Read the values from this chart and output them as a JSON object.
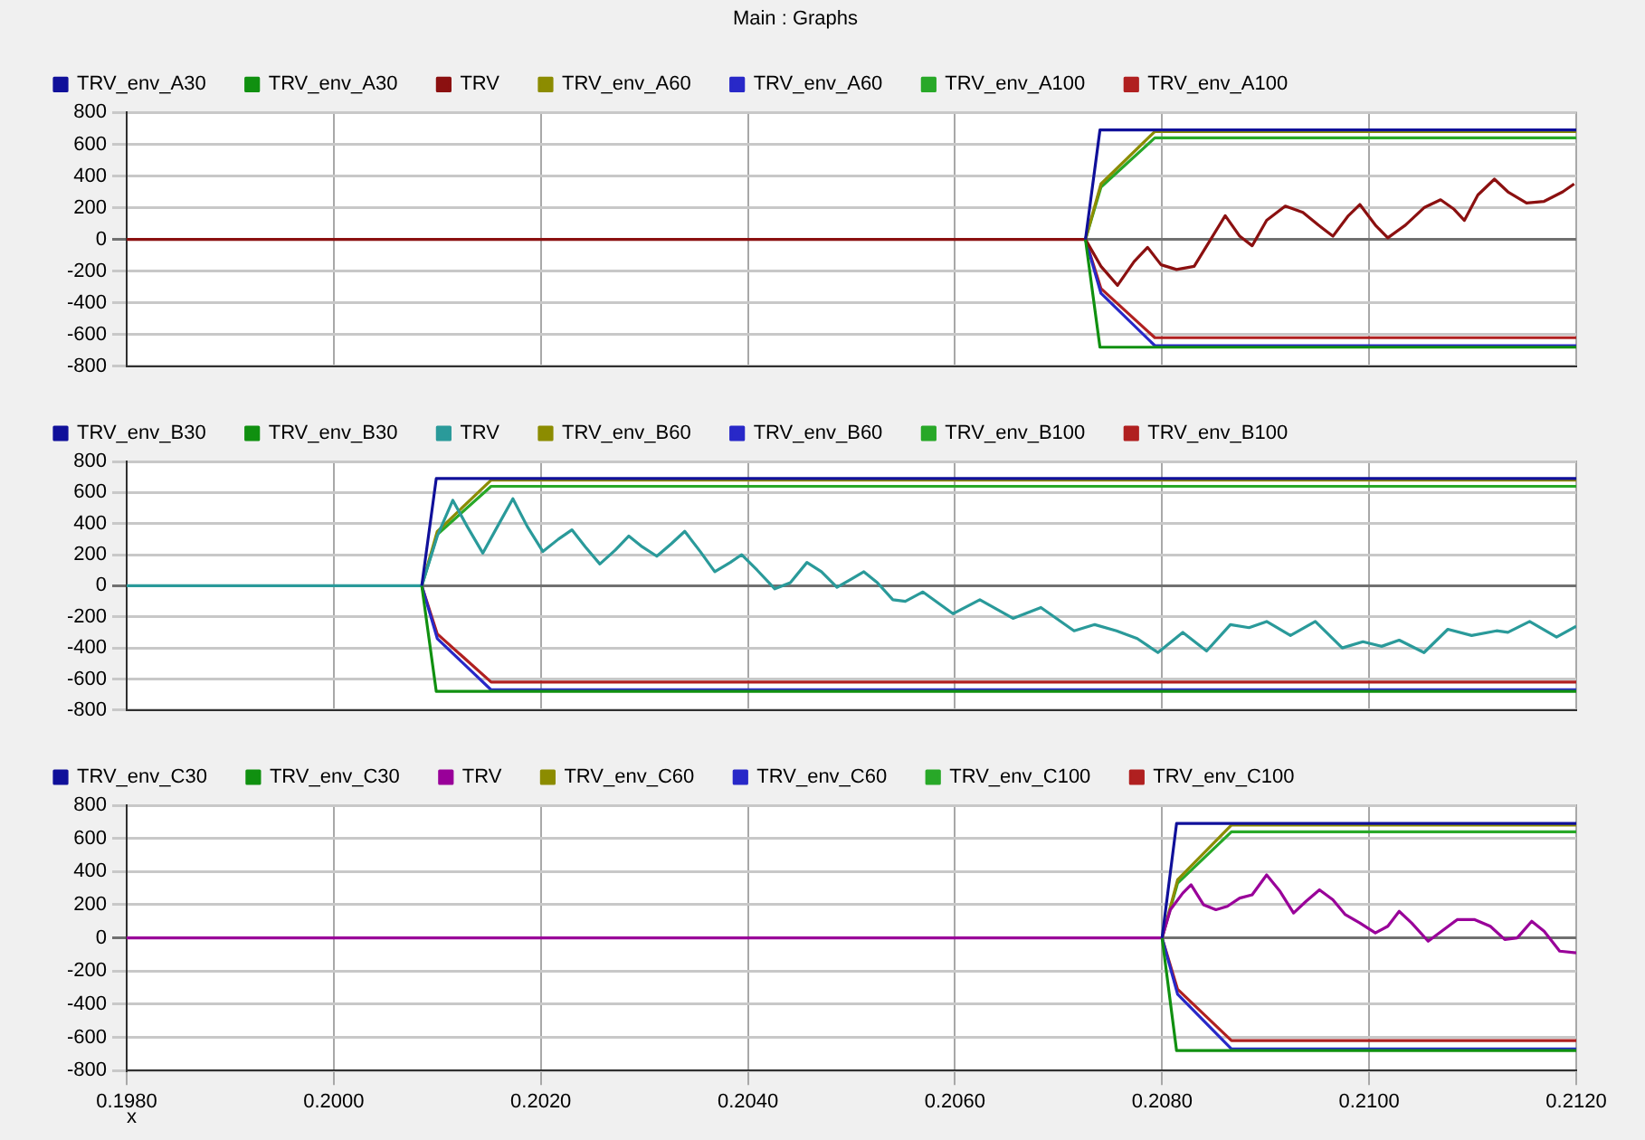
{
  "chart_data": [
    {
      "type": "line",
      "title": "Main : Graphs",
      "legend": "top",
      "grid": true,
      "tick_labels": "y",
      "xlim": [
        0.198,
        0.212
      ],
      "xticks": [
        0.198,
        0.2,
        0.202,
        0.204,
        0.206,
        0.208,
        0.21,
        0.212
      ],
      "ylim": [
        -800,
        800
      ],
      "yticks": [
        -800,
        -600,
        -400,
        -200,
        0,
        200,
        400,
        600,
        800
      ],
      "series": [
        {
          "name": "TRV_env_A30",
          "color": "#10109a",
          "x": [
            0.20726,
            0.2074,
            0.212
          ],
          "values": [
            0,
            690,
            690
          ]
        },
        {
          "name": "TRV_env_A30",
          "color": "#109010",
          "x": [
            0.20726,
            0.2074,
            0.212
          ],
          "values": [
            0,
            -680,
            -680
          ]
        },
        {
          "name": "TRV",
          "color": "#8b1010",
          "x": [
            0.198,
            0.20726,
            0.20741,
            0.20757,
            0.20773,
            0.20786,
            0.20799,
            0.20814,
            0.20831,
            0.20846,
            0.20861,
            0.20875,
            0.20887,
            0.20901,
            0.20919,
            0.20936,
            0.20951,
            0.20965,
            0.2098,
            0.20991,
            0.21006,
            0.21018,
            0.21035,
            0.21053,
            0.21069,
            0.21082,
            0.21092,
            0.21105,
            0.21121,
            0.21134,
            0.21152,
            0.21169,
            0.21187,
            0.21198
          ],
          "values": [
            0,
            0,
            -170,
            -290,
            -140,
            -50,
            -160,
            -190,
            -170,
            -10,
            150,
            20,
            -40,
            120,
            210,
            170,
            90,
            20,
            150,
            220,
            90,
            10,
            90,
            200,
            250,
            190,
            120,
            280,
            380,
            300,
            230,
            240,
            300,
            350
          ]
        },
        {
          "name": "TRV_env_A60",
          "color": "#8c8c00",
          "x": [
            0.20726,
            0.20741,
            0.20793,
            0.212
          ],
          "values": [
            0,
            350,
            680,
            680
          ]
        },
        {
          "name": "TRV_env_A60",
          "color": "#2828c8",
          "x": [
            0.20726,
            0.20741,
            0.20793,
            0.212
          ],
          "values": [
            0,
            -340,
            -670,
            -670
          ]
        },
        {
          "name": "TRV_env_A100",
          "color": "#28a828",
          "x": [
            0.20726,
            0.20741,
            0.20793,
            0.212
          ],
          "values": [
            0,
            330,
            640,
            640
          ]
        },
        {
          "name": "TRV_env_A100",
          "color": "#b02020",
          "x": [
            0.20726,
            0.20741,
            0.20793,
            0.212
          ],
          "values": [
            0,
            -310,
            -620,
            -620
          ]
        }
      ]
    },
    {
      "type": "line",
      "legend": "top",
      "grid": true,
      "tick_labels": "y",
      "xlim": [
        0.198,
        0.212
      ],
      "xticks": [
        0.198,
        0.2,
        0.202,
        0.204,
        0.206,
        0.208,
        0.21,
        0.212
      ],
      "ylim": [
        -800,
        800
      ],
      "yticks": [
        -800,
        -600,
        -400,
        -200,
        0,
        200,
        400,
        600,
        800
      ],
      "series": [
        {
          "name": "TRV_env_B30",
          "color": "#10109a",
          "x": [
            0.20085,
            0.20099,
            0.212
          ],
          "values": [
            0,
            690,
            690
          ]
        },
        {
          "name": "TRV_env_B30",
          "color": "#109010",
          "x": [
            0.20085,
            0.20099,
            0.212
          ],
          "values": [
            0,
            -680,
            -680
          ]
        },
        {
          "name": "TRV",
          "color": "#2a9a9a",
          "x": [
            0.198,
            0.20085,
            0.201,
            0.20115,
            0.20129,
            0.20144,
            0.20158,
            0.20173,
            0.20187,
            0.20202,
            0.20217,
            0.2023,
            0.20243,
            0.20257,
            0.20272,
            0.20285,
            0.20298,
            0.20312,
            0.20326,
            0.20339,
            0.20354,
            0.20368,
            0.20383,
            0.20394,
            0.20409,
            0.20426,
            0.20441,
            0.20457,
            0.20471,
            0.20486,
            0.20499,
            0.20512,
            0.20525,
            0.2054,
            0.20552,
            0.20569,
            0.20598,
            0.20624,
            0.20656,
            0.20683,
            0.20715,
            0.20735,
            0.20756,
            0.20776,
            0.20796,
            0.2082,
            0.20843,
            0.20866,
            0.20884,
            0.20901,
            0.20924,
            0.20948,
            0.20974,
            0.20994,
            0.21012,
            0.21029,
            0.21053,
            0.21076,
            0.21099,
            0.21123,
            0.21134,
            0.21155,
            0.21181,
            0.212
          ],
          "values": [
            0,
            0,
            320,
            550,
            380,
            210,
            380,
            560,
            380,
            220,
            300,
            360,
            250,
            140,
            230,
            320,
            250,
            190,
            270,
            350,
            220,
            90,
            150,
            200,
            100,
            -20,
            20,
            150,
            90,
            -10,
            40,
            90,
            20,
            -90,
            -100,
            -40,
            -180,
            -90,
            -210,
            -140,
            -290,
            -250,
            -290,
            -340,
            -430,
            -300,
            -420,
            -250,
            -270,
            -230,
            -320,
            -230,
            -400,
            -360,
            -390,
            -350,
            -430,
            -280,
            -320,
            -290,
            -300,
            -230,
            -330,
            -260
          ]
        },
        {
          "name": "TRV_env_B60",
          "color": "#8c8c00",
          "x": [
            0.20085,
            0.201,
            0.20152,
            0.212
          ],
          "values": [
            0,
            350,
            680,
            680
          ]
        },
        {
          "name": "TRV_env_B60",
          "color": "#2828c8",
          "x": [
            0.20085,
            0.201,
            0.20152,
            0.212
          ],
          "values": [
            0,
            -340,
            -670,
            -670
          ]
        },
        {
          "name": "TRV_env_B100",
          "color": "#28a828",
          "x": [
            0.20085,
            0.201,
            0.20152,
            0.212
          ],
          "values": [
            0,
            330,
            640,
            640
          ]
        },
        {
          "name": "TRV_env_B100",
          "color": "#b02020",
          "x": [
            0.20085,
            0.201,
            0.20152,
            0.212
          ],
          "values": [
            0,
            -310,
            -620,
            -620
          ]
        }
      ]
    },
    {
      "type": "line",
      "legend": "top",
      "grid": true,
      "xlabel": "x",
      "xlim": [
        0.198,
        0.212
      ],
      "xticks": [
        {
          "value": 0.198,
          "label": "0.1980"
        },
        {
          "value": 0.2,
          "label": "0.2000"
        },
        {
          "value": 0.202,
          "label": "0.2020"
        },
        {
          "value": 0.204,
          "label": "0.2040"
        },
        {
          "value": 0.206,
          "label": "0.2060"
        },
        {
          "value": 0.208,
          "label": "0.2080"
        },
        {
          "value": 0.21,
          "label": "0.2100"
        },
        {
          "value": 0.212,
          "label": "0.2120"
        }
      ],
      "ylim": [
        -800,
        800
      ],
      "yticks": [
        -800,
        -600,
        -400,
        -200,
        0,
        200,
        400,
        600,
        800
      ],
      "series": [
        {
          "name": "TRV_env_C30",
          "color": "#10109a",
          "x": [
            0.208,
            0.20814,
            0.212
          ],
          "values": [
            0,
            690,
            690
          ]
        },
        {
          "name": "TRV_env_C30",
          "color": "#109010",
          "x": [
            0.208,
            0.20814,
            0.212
          ],
          "values": [
            0,
            -680,
            -680
          ]
        },
        {
          "name": "TRV",
          "color": "#990099",
          "x": [
            0.198,
            0.208,
            0.20808,
            0.2082,
            0.20828,
            0.2084,
            0.20852,
            0.20863,
            0.20875,
            0.20887,
            0.20901,
            0.20914,
            0.20927,
            0.20939,
            0.20952,
            0.20965,
            0.20977,
            0.20991,
            0.21006,
            0.21018,
            0.21029,
            0.21041,
            0.21057,
            0.2107,
            0.21085,
            0.21102,
            0.21117,
            0.21131,
            0.21143,
            0.21157,
            0.21169,
            0.21184,
            0.212
          ],
          "values": [
            0,
            0,
            170,
            270,
            320,
            200,
            170,
            190,
            240,
            260,
            380,
            280,
            150,
            220,
            290,
            230,
            140,
            90,
            30,
            70,
            160,
            90,
            -20,
            40,
            110,
            110,
            70,
            -10,
            0,
            100,
            40,
            -80,
            -90
          ]
        },
        {
          "name": "TRV_env_C60",
          "color": "#8c8c00",
          "x": [
            0.208,
            0.20815,
            0.20867,
            0.212
          ],
          "values": [
            0,
            350,
            680,
            680
          ]
        },
        {
          "name": "TRV_env_C60",
          "color": "#2828c8",
          "x": [
            0.208,
            0.20815,
            0.20867,
            0.212
          ],
          "values": [
            0,
            -340,
            -670,
            -670
          ]
        },
        {
          "name": "TRV_env_C100",
          "color": "#28a828",
          "x": [
            0.208,
            0.20815,
            0.20867,
            0.212
          ],
          "values": [
            0,
            330,
            640,
            640
          ]
        },
        {
          "name": "TRV_env_C100",
          "color": "#b02020",
          "x": [
            0.208,
            0.20815,
            0.20867,
            0.212
          ],
          "values": [
            0,
            -310,
            -620,
            -620
          ]
        }
      ]
    }
  ]
}
